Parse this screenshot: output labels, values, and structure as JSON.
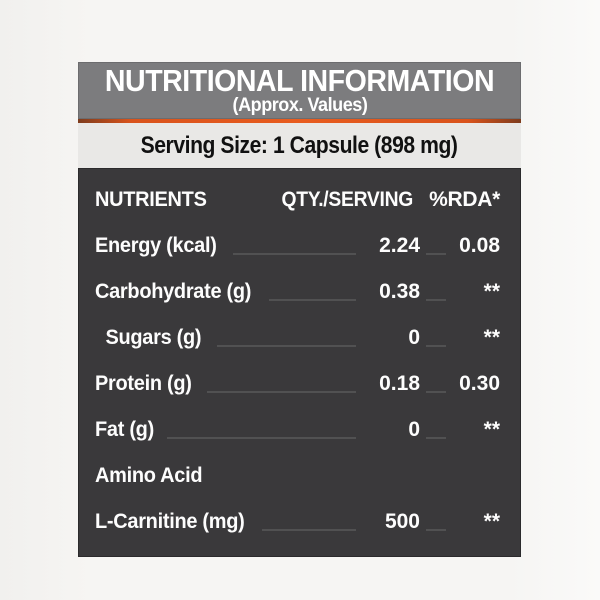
{
  "label": {
    "title": "NUTRITIONAL INFORMATION",
    "subtitle": "(Approx. Values)",
    "serving_size": "Serving Size: 1 Capsule (898 mg)",
    "table": {
      "columns": {
        "nutrients": "NUTRIENTS",
        "qty": "QTY./SERVING",
        "rda": "%RDA*"
      },
      "rows": [
        {
          "name": "Energy (kcal)",
          "qty": "2.24",
          "rda": "0.08"
        },
        {
          "name": "Carbohydrate (g)",
          "qty": "0.38",
          "rda": "**"
        },
        {
          "name": "Sugars (g)",
          "qty": "0",
          "rda": "**"
        },
        {
          "name": "Protein (g)",
          "qty": "0.18",
          "rda": "0.30"
        },
        {
          "name": "Fat (g)",
          "qty": "0",
          "rda": "**"
        },
        {
          "name": "Amino Acid",
          "qty": "",
          "rda": ""
        },
        {
          "name": "L-Carnitine (mg)",
          "qty": "500",
          "rda": "**"
        }
      ]
    },
    "colors": {
      "accent_orange": "#d9531c",
      "header_gray": "#7c7c7e",
      "table_dark": "#3a393b",
      "serving_band": "#e9e8e6"
    }
  }
}
